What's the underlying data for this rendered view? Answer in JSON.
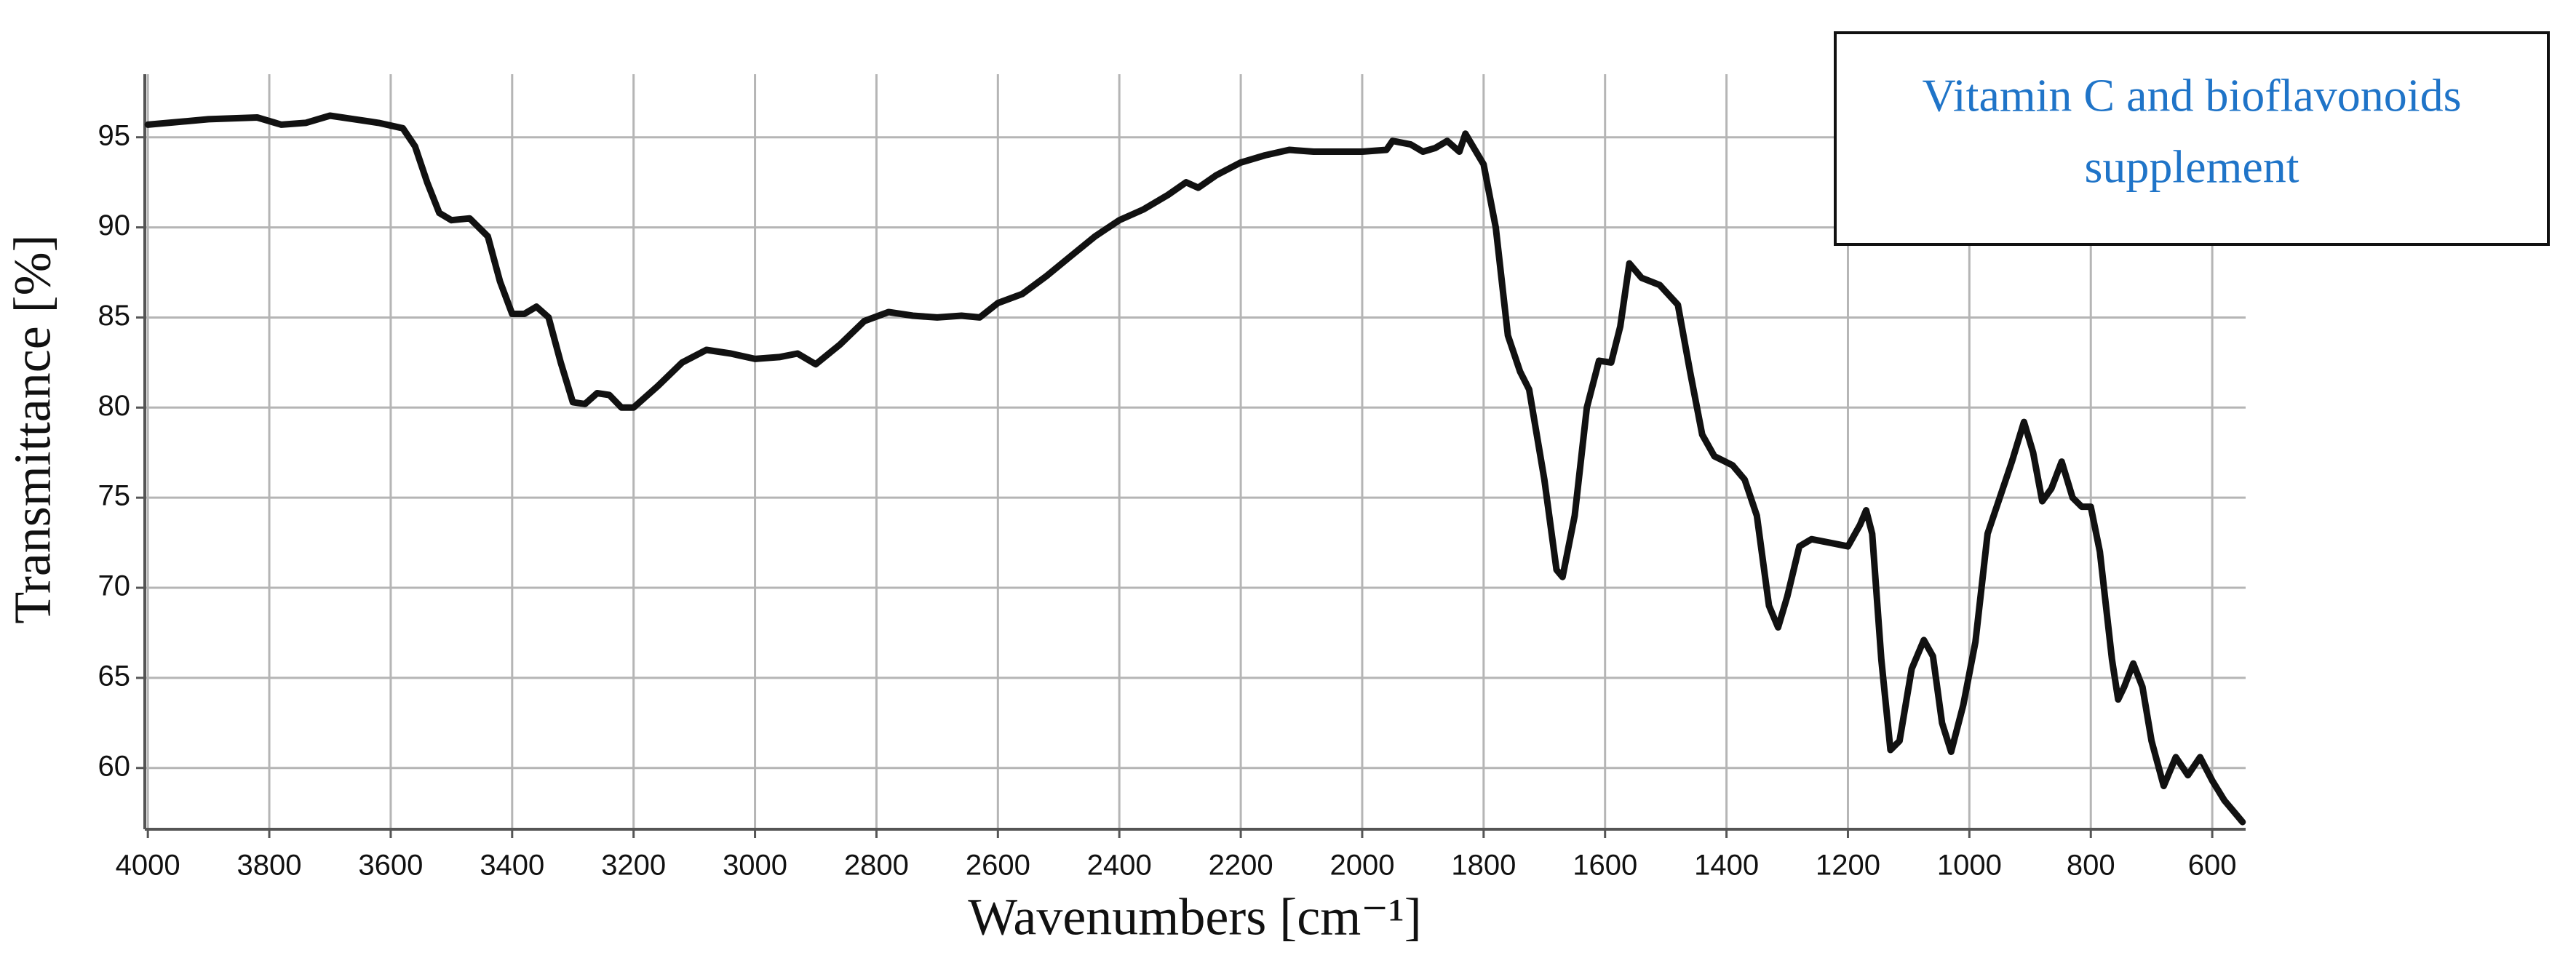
{
  "chart_data": {
    "type": "line",
    "xlabel": "Wavenumbers [cm⁻¹]",
    "ylabel": "Transmittance [%]",
    "annotation": [
      "Vitamin C and bioflavonoids",
      "supplement"
    ],
    "color": "#111111",
    "grid": true,
    "xlim": [
      4005,
      545
    ],
    "ylim": [
      56.6,
      98.5
    ],
    "xticks": [
      4000,
      3800,
      3600,
      3400,
      3200,
      3000,
      2800,
      2600,
      2400,
      2200,
      2000,
      1800,
      1600,
      1400,
      1200,
      1000,
      800,
      600
    ],
    "yticks": [
      60,
      65,
      70,
      75,
      80,
      85,
      90,
      95
    ],
    "x": [
      4000,
      3900,
      3820,
      3780,
      3740,
      3700,
      3660,
      3620,
      3580,
      3560,
      3540,
      3520,
      3500,
      3470,
      3440,
      3420,
      3400,
      3380,
      3360,
      3340,
      3320,
      3300,
      3280,
      3260,
      3240,
      3220,
      3200,
      3160,
      3120,
      3080,
      3040,
      3000,
      2960,
      2930,
      2900,
      2860,
      2820,
      2780,
      2740,
      2700,
      2660,
      2630,
      2600,
      2560,
      2520,
      2480,
      2440,
      2400,
      2360,
      2320,
      2290,
      2270,
      2240,
      2200,
      2160,
      2120,
      2080,
      2040,
      2000,
      1960,
      1950,
      1920,
      1900,
      1880,
      1860,
      1840,
      1830,
      1800,
      1780,
      1760,
      1740,
      1725,
      1700,
      1680,
      1670,
      1650,
      1630,
      1610,
      1590,
      1575,
      1560,
      1540,
      1510,
      1480,
      1460,
      1440,
      1420,
      1390,
      1370,
      1350,
      1330,
      1315,
      1300,
      1280,
      1260,
      1230,
      1200,
      1180,
      1170,
      1160,
      1145,
      1130,
      1115,
      1095,
      1075,
      1060,
      1045,
      1030,
      1010,
      990,
      970,
      950,
      930,
      910,
      895,
      880,
      865,
      848,
      830,
      815,
      800,
      785,
      765,
      755,
      745,
      730,
      715,
      700,
      680,
      660,
      640,
      620,
      600,
      580,
      560,
      550
    ],
    "values": [
      95.7,
      96.0,
      96.1,
      95.7,
      95.8,
      96.2,
      96.0,
      95.8,
      95.5,
      94.5,
      92.5,
      90.8,
      90.4,
      90.5,
      89.5,
      87.0,
      85.2,
      85.2,
      85.6,
      85.0,
      82.5,
      80.3,
      80.2,
      80.8,
      80.7,
      80.0,
      80.0,
      81.2,
      82.5,
      83.2,
      83.0,
      82.7,
      82.8,
      83.0,
      82.4,
      83.5,
      84.8,
      85.3,
      85.1,
      85.0,
      85.1,
      85.0,
      85.8,
      86.3,
      87.3,
      88.4,
      89.5,
      90.4,
      91.0,
      91.8,
      92.5,
      92.2,
      92.9,
      93.6,
      94.0,
      94.3,
      94.2,
      94.2,
      94.2,
      94.3,
      94.8,
      94.6,
      94.2,
      94.4,
      94.8,
      94.2,
      95.2,
      93.5,
      90.0,
      84.0,
      82.0,
      81.0,
      76.0,
      71.0,
      70.6,
      74.0,
      80.0,
      82.6,
      82.5,
      84.5,
      88.0,
      87.2,
      86.8,
      85.7,
      82.0,
      78.5,
      77.3,
      76.8,
      76.0,
      74.0,
      69.0,
      67.8,
      69.5,
      72.3,
      72.7,
      72.5,
      72.3,
      73.5,
      74.3,
      73.0,
      66.0,
      61.0,
      61.5,
      65.5,
      67.1,
      66.2,
      62.5,
      60.9,
      63.5,
      67.0,
      73.0,
      75.0,
      77.0,
      79.2,
      77.5,
      74.8,
      75.5,
      77.0,
      75.0,
      74.5,
      74.5,
      72.0,
      66.0,
      63.8,
      64.5,
      65.8,
      64.5,
      61.5,
      59.0,
      60.6,
      59.6,
      60.6,
      59.3,
      58.2,
      57.4,
      57.0
    ]
  }
}
